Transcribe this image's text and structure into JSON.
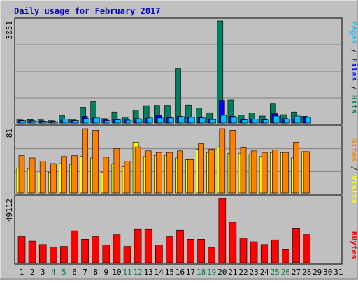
{
  "title": "Daily usage for February 2017",
  "colors": {
    "title": "#0000c0",
    "background": "#c0c0c0",
    "hits": "#008060",
    "files": "#0000ff",
    "pages": "#00c0ff",
    "visits": "#ffff00",
    "sites": "#ff8000",
    "kbytes": "#ff0000",
    "weekend_day": "#008040",
    "weekday": "#000000"
  },
  "chart_data": [
    {
      "type": "bar",
      "panel": "top",
      "max_label": "3051",
      "ymax": 3051,
      "legend": [
        {
          "text": "Pages",
          "color": "#00c0ff"
        },
        {
          "text": " / ",
          "color": "#000000"
        },
        {
          "text": "Files",
          "color": "#0000ff"
        },
        {
          "text": " / ",
          "color": "#000000"
        },
        {
          "text": "Hits",
          "color": "#008060"
        }
      ],
      "categories": [
        1,
        2,
        3,
        4,
        5,
        6,
        7,
        8,
        9,
        10,
        11,
        12,
        13,
        14,
        15,
        16,
        17,
        18,
        19,
        20,
        21,
        22,
        23,
        24,
        25,
        26,
        27,
        28,
        29,
        30,
        31
      ],
      "series": [
        {
          "name": "Hits",
          "color": "#008060",
          "values": [
            120,
            100,
            90,
            70,
            230,
            110,
            470,
            640,
            130,
            330,
            180,
            380,
            520,
            530,
            530,
            1620,
            540,
            450,
            310,
            3051,
            690,
            240,
            300,
            210,
            570,
            250,
            330,
            200,
            0,
            0,
            0
          ]
        },
        {
          "name": "Files",
          "color": "#0000ff",
          "values": [
            80,
            70,
            60,
            50,
            80,
            80,
            200,
            150,
            90,
            120,
            90,
            130,
            140,
            230,
            160,
            200,
            160,
            160,
            120,
            680,
            200,
            110,
            100,
            100,
            280,
            130,
            120,
            160,
            0,
            0,
            0
          ]
        },
        {
          "name": "Pages",
          "color": "#00c0ff",
          "values": [
            70,
            60,
            50,
            40,
            110,
            70,
            130,
            150,
            70,
            90,
            80,
            110,
            150,
            150,
            150,
            190,
            170,
            150,
            100,
            230,
            170,
            90,
            120,
            90,
            210,
            120,
            210,
            170,
            0,
            0,
            0
          ]
        }
      ]
    },
    {
      "type": "bar",
      "panel": "middle",
      "max_label": "81",
      "ymax": 81,
      "legend": [
        {
          "text": "Sites",
          "color": "#ff8000"
        },
        {
          "text": " / ",
          "color": "#000000"
        },
        {
          "text": "Visits",
          "color": "#ffff00"
        }
      ],
      "categories": [
        1,
        2,
        3,
        4,
        5,
        6,
        7,
        8,
        9,
        10,
        11,
        12,
        13,
        14,
        15,
        16,
        17,
        18,
        19,
        20,
        21,
        22,
        23,
        24,
        25,
        26,
        27,
        28,
        29,
        30,
        31
      ],
      "series": [
        {
          "name": "Visits",
          "color": "#ffff00",
          "values": [
            31,
            30,
            25,
            26,
            37,
            36,
            46,
            44,
            26,
            37,
            33,
            64,
            46,
            47,
            47,
            44,
            42,
            55,
            51,
            58,
            50,
            50,
            49,
            46,
            51,
            51,
            44,
            52,
            0,
            0,
            0
          ]
        },
        {
          "name": "Sites",
          "color": "#ff8000",
          "values": [
            47,
            44,
            40,
            37,
            46,
            47,
            81,
            79,
            45,
            56,
            40,
            58,
            53,
            51,
            51,
            53,
            42,
            62,
            55,
            81,
            79,
            57,
            53,
            51,
            54,
            51,
            64,
            52,
            0,
            0,
            0
          ]
        }
      ]
    },
    {
      "type": "bar",
      "panel": "bottom",
      "max_label": "49112",
      "ymax": 49112,
      "legend": [
        {
          "text": "KBytes",
          "color": "#ff0000"
        }
      ],
      "categories": [
        1,
        2,
        3,
        4,
        5,
        6,
        7,
        8,
        9,
        10,
        11,
        12,
        13,
        14,
        15,
        16,
        17,
        18,
        19,
        20,
        21,
        22,
        23,
        24,
        25,
        26,
        27,
        28,
        29,
        30,
        31
      ],
      "series": [
        {
          "name": "KBytes",
          "color": "#ff0000",
          "values": [
            20000,
            16500,
            14000,
            12000,
            12500,
            24500,
            18000,
            20000,
            13500,
            21500,
            12500,
            25500,
            25500,
            13500,
            20000,
            25000,
            18000,
            18000,
            11500,
            49112,
            31000,
            19000,
            16000,
            14000,
            17500,
            10000,
            26000,
            21500,
            0,
            0,
            0
          ]
        }
      ]
    }
  ],
  "x_axis": {
    "labels": [
      "1",
      "2",
      "3",
      "4",
      "5",
      "6",
      "7",
      "8",
      "9",
      "10",
      "11",
      "12",
      "13",
      "14",
      "15",
      "16",
      "17",
      "18",
      "19",
      "20",
      "21",
      "22",
      "23",
      "24",
      "25",
      "26",
      "27",
      "28",
      "29",
      "30",
      "31"
    ],
    "weekend_days": [
      4,
      5,
      11,
      12,
      18,
      19,
      25,
      26
    ]
  }
}
